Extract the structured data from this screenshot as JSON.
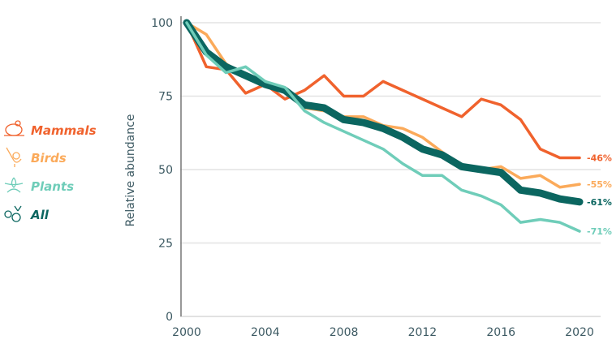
{
  "chart_data": {
    "type": "line",
    "title": "",
    "xlabel": "",
    "ylabel": "Relative abundance",
    "xlim": [
      2000,
      2021
    ],
    "ylim": [
      0,
      100
    ],
    "x_ticks": [
      2000,
      2004,
      2008,
      2012,
      2016,
      2020
    ],
    "y_ticks": [
      0,
      25,
      50,
      75,
      100
    ],
    "grid": "horizontal",
    "legend_placement": "left",
    "x": [
      2000,
      2001,
      2002,
      2003,
      2004,
      2005,
      2006,
      2007,
      2008,
      2009,
      2010,
      2011,
      2012,
      2013,
      2014,
      2015,
      2016,
      2017,
      2018,
      2019,
      2020
    ],
    "series": [
      {
        "name": "Mammals",
        "color": "#f0622d",
        "icon": "mouse-icon",
        "end_label": "-46%",
        "values": [
          100,
          85,
          84,
          76,
          79,
          74,
          77,
          82,
          75,
          75,
          80,
          77,
          74,
          71,
          68,
          74,
          72,
          67,
          57,
          54,
          54
        ]
      },
      {
        "name": "Birds",
        "color": "#fbaa5a",
        "icon": "bird-icon",
        "end_label": "-55%",
        "values": [
          100,
          96,
          86,
          82,
          80,
          77,
          71,
          70,
          68,
          68,
          65,
          64,
          61,
          56,
          51,
          50,
          51,
          47,
          48,
          44,
          45
        ]
      },
      {
        "name": "Plants",
        "color": "#6fcdb9",
        "icon": "flower-icon",
        "end_label": "-71%",
        "values": [
          100,
          89,
          83,
          85,
          80,
          78,
          70,
          66,
          63,
          60,
          57,
          52,
          48,
          48,
          43,
          41,
          38,
          32,
          33,
          32,
          29
        ]
      },
      {
        "name": "All",
        "color": "#0b6660",
        "icon": "all-species-icon",
        "end_label": "-61%",
        "values": [
          100,
          90,
          85,
          82,
          79,
          77,
          72,
          71,
          67,
          66,
          64,
          61,
          57,
          55,
          51,
          50,
          49,
          43,
          42,
          40,
          39
        ]
      }
    ]
  }
}
